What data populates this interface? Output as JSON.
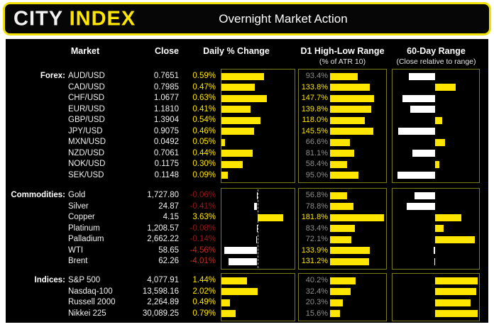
{
  "header": {
    "logo_city": "CITY",
    "logo_index": "INDEX",
    "title": "Overnight Market Action"
  },
  "columns": {
    "market": "Market",
    "close": "Close",
    "daily": "Daily % Change",
    "d1": "D1 High-Low Range",
    "d1_sub": "(% of ATR 10)",
    "range60": "60-Day Range",
    "range60_sub": "(Close relative to range)"
  },
  "colors": {
    "bar_yellow": "#ffe600",
    "bar_white": "#ffffff",
    "pct_positive": "#ffe600",
    "pct_negative": "#8e1b1b",
    "pct_negative_strong": "#bb2f22",
    "d1_label_normal": "#8f8f8f",
    "d1_label_high": "#ffe600",
    "box_border": "#7c7c1e",
    "background": "#000000"
  },
  "chart_data": {
    "type": "table",
    "title": "Overnight Market Action",
    "legend_note": "Yellow bars = positive / above mid-range; white bars = negative / below mid-range; D1 labels turn yellow at >=100% of ATR 10",
    "sections": [
      {
        "id": "forex",
        "label": "Forex:",
        "daily_axis": {
          "min": 0,
          "max": 1.0
        },
        "d1_axis_max": 182,
        "rows": [
          {
            "market": "AUD/USD",
            "close": "0.7651",
            "daily_pct": 0.59,
            "daily_label": "0.59%",
            "d1_pct": 93.4,
            "d1_label": "93.4%",
            "range60_pct": 19
          },
          {
            "market": "CAD/USD",
            "close": "0.7985",
            "daily_pct": 0.47,
            "daily_label": "0.47%",
            "d1_pct": 133.8,
            "d1_label": "133.8%",
            "range60_pct": 74
          },
          {
            "market": "CHF/USD",
            "close": "1.0677",
            "daily_pct": 0.63,
            "daily_label": "0.63%",
            "d1_pct": 147.7,
            "d1_label": "147.7%",
            "range60_pct": 12
          },
          {
            "market": "EUR/USD",
            "close": "1.1810",
            "daily_pct": 0.41,
            "daily_label": "0.41%",
            "d1_pct": 139.8,
            "d1_label": "139.8%",
            "range60_pct": 21
          },
          {
            "market": "GBP/USD",
            "close": "1.3904",
            "daily_pct": 0.54,
            "daily_label": "0.54%",
            "d1_pct": 118.0,
            "d1_label": "118.0%",
            "range60_pct": 58
          },
          {
            "market": "JPY/USD",
            "close": "0.9075",
            "daily_pct": 0.46,
            "daily_label": "0.46%",
            "d1_pct": 145.5,
            "d1_label": "145.5%",
            "range60_pct": 7
          },
          {
            "market": "MXN/USD",
            "close": "0.0492",
            "daily_pct": 0.05,
            "daily_label": "0.05%",
            "d1_pct": 66.6,
            "d1_label": "66.6%",
            "range60_pct": 62
          },
          {
            "market": "NZD/USD",
            "close": "0.7061",
            "daily_pct": 0.44,
            "daily_label": "0.44%",
            "d1_pct": 81.1,
            "d1_label": "81.1%",
            "range60_pct": 23
          },
          {
            "market": "NOK/USD",
            "close": "0.1175",
            "daily_pct": 0.3,
            "daily_label": "0.30%",
            "d1_pct": 58.4,
            "d1_label": "58.4%",
            "range60_pct": 55
          },
          {
            "market": "SEK/USD",
            "close": "0.1148",
            "daily_pct": 0.09,
            "daily_label": "0.09%",
            "d1_pct": 95.0,
            "d1_label": "95.0%",
            "range60_pct": 6
          }
        ]
      },
      {
        "id": "commodities",
        "label": "Commodities:",
        "daily_axis": {
          "min": -5.0,
          "max": 5.0
        },
        "d1_axis_max": 182,
        "rows": [
          {
            "market": "Gold",
            "close": "1,727.80",
            "daily_pct": -0.06,
            "daily_label": "-0.06%",
            "d1_pct": 56.8,
            "d1_label": "56.8%",
            "range60_pct": 26
          },
          {
            "market": "Silver",
            "close": "24.87",
            "daily_pct": -0.41,
            "daily_label": "-0.41%",
            "d1_pct": 78.8,
            "d1_label": "78.8%",
            "range60_pct": 17
          },
          {
            "market": "Copper",
            "close": "4.15",
            "daily_pct": 3.63,
            "daily_label": "3.63%",
            "d1_pct": 181.8,
            "d1_label": "181.8%",
            "range60_pct": 81
          },
          {
            "market": "Platinum",
            "close": "1,208.57",
            "daily_pct": -0.08,
            "daily_label": "-0.08%",
            "d1_pct": 83.4,
            "d1_label": "83.4%",
            "range60_pct": 60
          },
          {
            "market": "Palladium",
            "close": "2,662.22",
            "daily_pct": -0.14,
            "daily_label": "-0.14%",
            "d1_pct": 72.1,
            "d1_label": "72.1%",
            "range60_pct": 97
          },
          {
            "market": "WTI",
            "close": "58.65",
            "daily_pct": -4.56,
            "daily_label": "-4.56%",
            "d1_pct": 133.9,
            "d1_label": "133.9%",
            "range60_pct": 48
          },
          {
            "market": "Brent",
            "close": "62.26",
            "daily_pct": -4.01,
            "daily_label": "-4.01%",
            "d1_pct": 131.2,
            "d1_label": "131.2%",
            "range60_pct": 49
          }
        ]
      },
      {
        "id": "indices",
        "label": "Indices:",
        "daily_axis": {
          "min": 0,
          "max": 4.0
        },
        "d1_axis_max": 86,
        "rows": [
          {
            "market": "S&P 500",
            "close": "4,077.91",
            "daily_pct": 1.44,
            "daily_label": "1.44%",
            "d1_pct": 40.2,
            "d1_label": "40.2%",
            "range60_pct": 100
          },
          {
            "market": "Nasdaq-100",
            "close": "13,598.16",
            "daily_pct": 2.02,
            "daily_label": "2.02%",
            "d1_pct": 32.4,
            "d1_label": "32.4%",
            "range60_pct": 98
          },
          {
            "market": "Russell 2000",
            "close": "2,264.89",
            "daily_pct": 0.49,
            "daily_label": "0.49%",
            "d1_pct": 20.3,
            "d1_label": "20.3%",
            "range60_pct": 92
          },
          {
            "market": "Nikkei 225",
            "close": "30,089.25",
            "daily_pct": 0.79,
            "daily_label": "0.79%",
            "d1_pct": 15.6,
            "d1_label": "15.6%",
            "range60_pct": 100
          }
        ]
      }
    ]
  }
}
